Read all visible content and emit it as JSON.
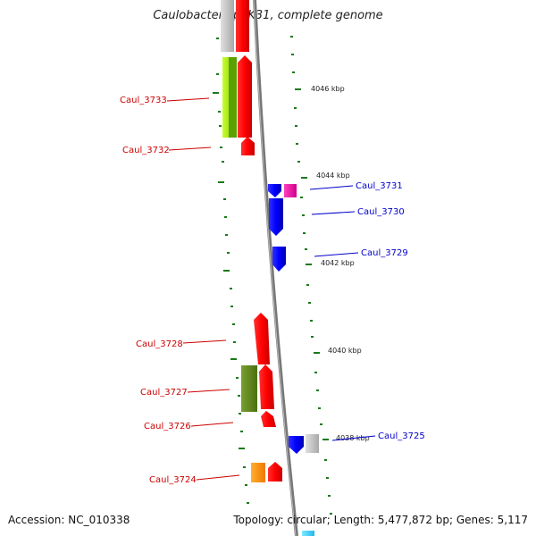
{
  "title": "Caulobacter sp. K31, complete genome",
  "accession": "Accession: NC_010338",
  "topology": "Topology: circular; Length: 5,477,872 bp; Genes: 5,117",
  "colors": {
    "forward_label": "#cc0000",
    "reverse_label": "#0000cc",
    "tick": "#1a7a1a",
    "backbone": "#888888"
  },
  "ticks": [
    {
      "label": "4046 kbp"
    },
    {
      "label": "4044 kbp"
    },
    {
      "label": "4042 kbp"
    },
    {
      "label": "4040 kbp"
    },
    {
      "label": "4038 kbp"
    }
  ],
  "genes_forward": [
    {
      "name": "Caul_3733"
    },
    {
      "name": "Caul_3732"
    },
    {
      "name": "Caul_3728"
    },
    {
      "name": "Caul_3727"
    },
    {
      "name": "Caul_3726"
    },
    {
      "name": "Caul_3724"
    }
  ],
  "genes_reverse": [
    {
      "name": "Caul_3731"
    },
    {
      "name": "Caul_3730"
    },
    {
      "name": "Caul_3729"
    },
    {
      "name": "Caul_3725"
    }
  ]
}
